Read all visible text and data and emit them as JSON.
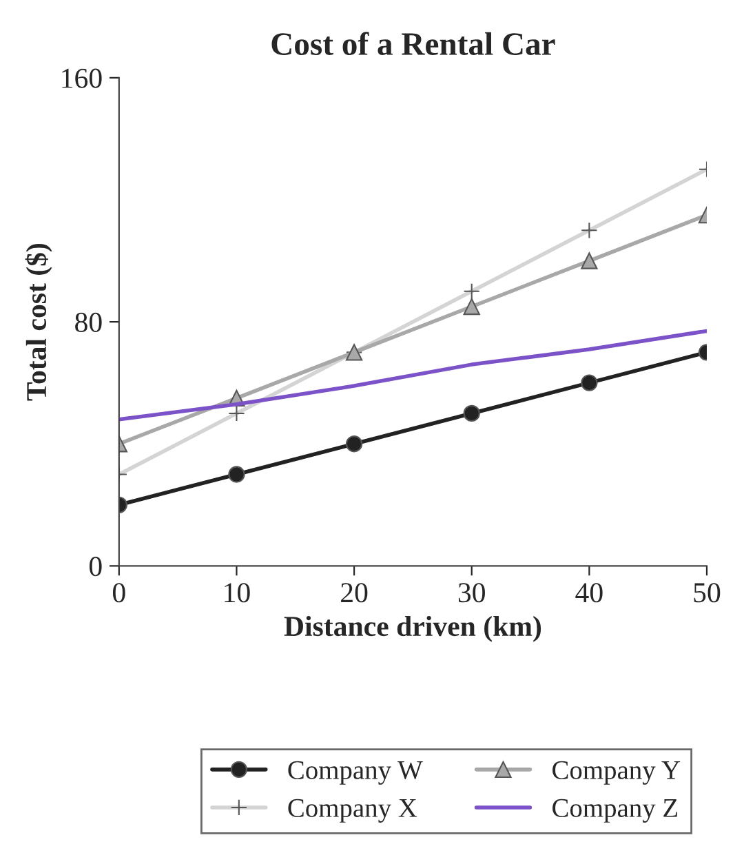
{
  "chart_data": {
    "type": "line",
    "title": "Cost of a Rental Car",
    "xlabel": "Distance driven (km)",
    "ylabel": "Total cost ($)",
    "x": [
      0,
      10,
      20,
      30,
      40,
      50
    ],
    "series": [
      {
        "name": "Company W",
        "color": "#222222",
        "marker": "circle",
        "values": [
          20,
          30,
          40,
          50,
          60,
          70
        ]
      },
      {
        "name": "Company X",
        "color": "#d4d4d4",
        "marker": "cross",
        "values": [
          30,
          50,
          70,
          90,
          110,
          130
        ]
      },
      {
        "name": "Company Y",
        "color": "#a8a8a8",
        "marker": "triangle",
        "values": [
          40,
          55,
          70,
          85,
          100,
          115
        ]
      },
      {
        "name": "Company Z",
        "color": "#7b52c8",
        "marker": "none",
        "values": [
          48,
          53,
          59,
          66,
          71,
          77
        ]
      }
    ],
    "xlim": [
      0,
      50
    ],
    "ylim": [
      0,
      160
    ],
    "xticks": [
      0,
      10,
      20,
      30,
      40,
      50
    ],
    "yticks": [
      0,
      80,
      160
    ],
    "grid": false,
    "legend": "bottom",
    "line_style": "solid"
  }
}
